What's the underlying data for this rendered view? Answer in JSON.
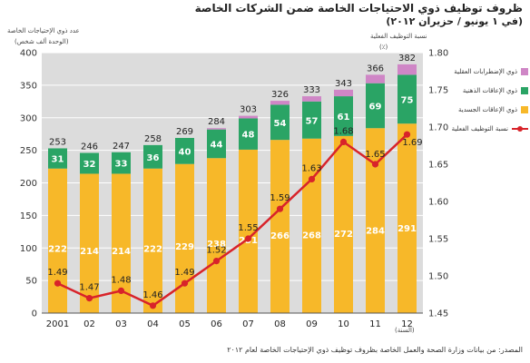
{
  "title": "ظروف توظيف ذوي الاحتياجات الخاصة ضمن الشركات الخاصة",
  "subtitle": "(في ١ يونيو / حزيران ٢٠١٢)",
  "y_left_label": "عدد ذوي الإحتياجات الخاصة",
  "y_left_unit": "(الوحدة ألف شخص)",
  "y_right_label": "نسبة التوظيف الفعلية",
  "y_right_unit": "(٪)",
  "x_unit": "(السنة)",
  "source": "المصدر: من بيانات وزارة الصحة والعمل الخاصة بظروف توظيف ذوي الإحتياجات الخاصة لعام ٢٠١٢",
  "colors": {
    "physical": "#f7b829",
    "intellectual": "#2aa465",
    "mental": "#cf86c6",
    "rate": "#d8232a",
    "plot_bg": "#dcdcdc"
  },
  "chart_data": {
    "type": "bar",
    "stacked": true,
    "categories": [
      "2001",
      "02",
      "03",
      "04",
      "05",
      "06",
      "07",
      "08",
      "09",
      "10",
      "11",
      "12"
    ],
    "series": [
      {
        "name": "ذوي الإعاقات الجسدية",
        "values": [
          222,
          214,
          214,
          222,
          229,
          238,
          251,
          266,
          268,
          272,
          284,
          291
        ]
      },
      {
        "name": "ذوي الإعاقات الذهنية",
        "values": [
          31,
          32,
          33,
          36,
          40,
          44,
          48,
          54,
          57,
          61,
          69,
          75
        ]
      },
      {
        "name": "ذوي الإضطرابات العقلية",
        "values": [
          0,
          0,
          0,
          0,
          0,
          2,
          4,
          6,
          8,
          10,
          13,
          16
        ]
      }
    ],
    "totals": [
      253,
      246,
      247,
      258,
      269,
      284,
      303,
      326,
      333,
      343,
      366,
      382
    ],
    "line": {
      "name": "نسبة التوظيف الفعلية",
      "values": [
        1.49,
        1.47,
        1.48,
        1.46,
        1.49,
        1.52,
        1.55,
        1.59,
        1.63,
        1.68,
        1.65,
        1.69
      ]
    },
    "y_left": {
      "min": 0,
      "max": 400,
      "ticks": [
        0,
        50,
        100,
        150,
        200,
        250,
        300,
        350,
        400
      ]
    },
    "y_right": {
      "min": 1.45,
      "max": 1.8,
      "ticks": [
        1.45,
        1.5,
        1.55,
        1.6,
        1.65,
        1.7,
        1.75,
        1.8
      ]
    },
    "grid": true,
    "legend": "right"
  }
}
